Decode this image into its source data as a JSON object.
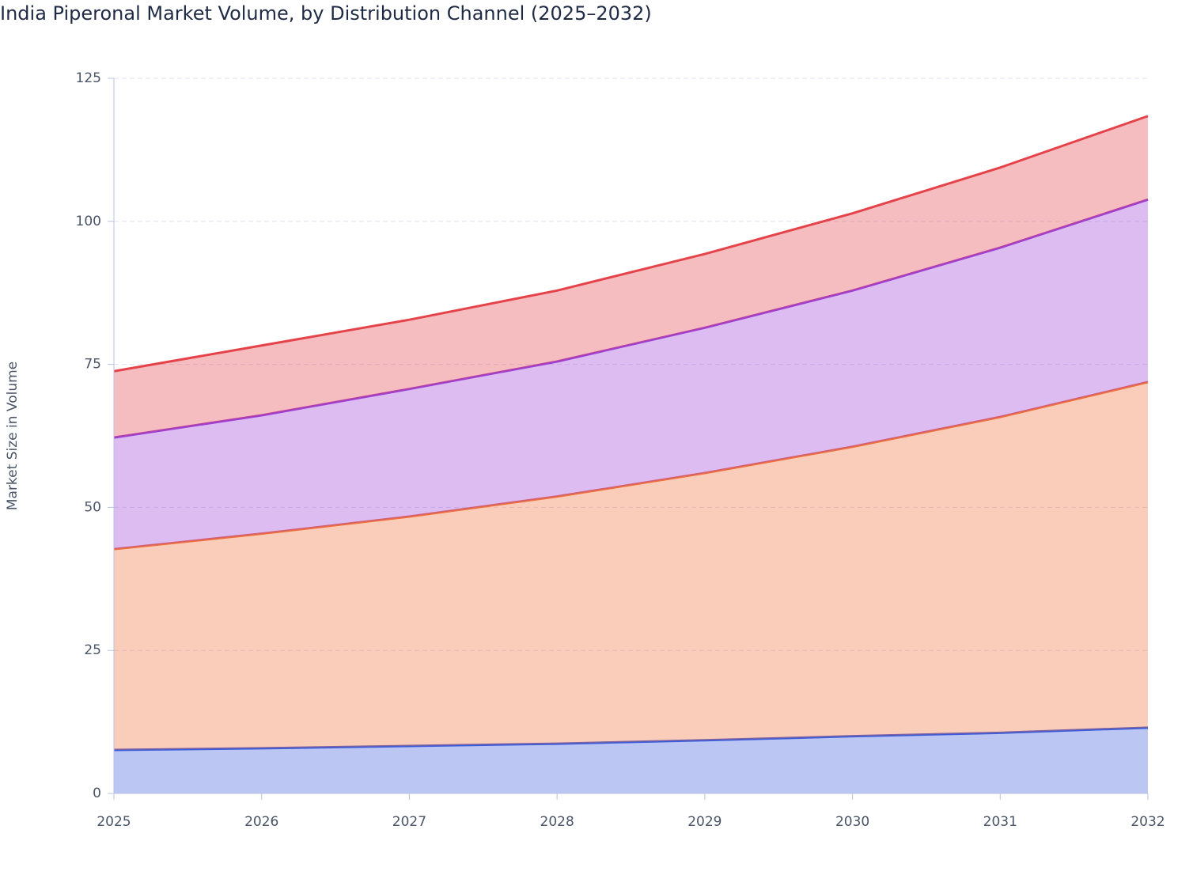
{
  "chart_data": {
    "type": "stacked-area",
    "title": "India Piperonal Market Volume, by Distribution Channel (2025–2032)",
    "y_label": "Market Size in Volume",
    "x": [
      2025,
      2026,
      2027,
      2028,
      2029,
      2030,
      2031,
      2032
    ],
    "xlim": [
      2025,
      2032
    ],
    "xticks": [
      2025,
      2026,
      2027,
      2028,
      2029,
      2030,
      2031,
      2032
    ],
    "ylim": [
      0,
      125
    ],
    "yticks": [
      0,
      25,
      50,
      75,
      100,
      125
    ],
    "grid": true,
    "series": [
      {
        "color": "#3b5bdb",
        "values": [
          7.6,
          7.9,
          8.3,
          8.7,
          9.3,
          10.0,
          10.6,
          11.5
        ]
      },
      {
        "color": "#f0703c",
        "values": [
          35.1,
          37.5,
          40.1,
          43.2,
          46.7,
          50.6,
          55.2,
          60.4
        ]
      },
      {
        "color": "#9b3fd6",
        "values": [
          19.5,
          20.7,
          22.3,
          23.6,
          25.4,
          27.3,
          29.6,
          31.9
        ]
      },
      {
        "color": "#e5434a",
        "values": [
          11.6,
          12.2,
          12.1,
          12.4,
          12.9,
          13.5,
          14.0,
          14.6
        ]
      }
    ]
  }
}
